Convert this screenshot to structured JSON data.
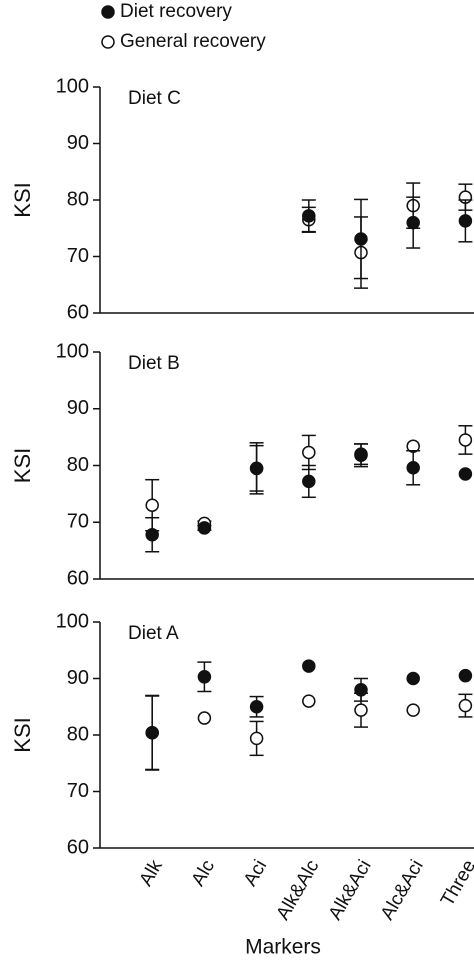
{
  "chart_data": [
    {
      "type": "scatter",
      "title": "Diet C",
      "ylabel": "KSI",
      "ylim": [
        60,
        100
      ],
      "yticks": [
        60,
        70,
        80,
        90,
        100
      ],
      "series": [
        {
          "name": "Diet recovery",
          "color": "#111111",
          "fill": "#111111",
          "values": [
            null,
            null,
            null,
            77.2,
            73.1,
            76,
            76.3
          ],
          "errors": [
            null,
            null,
            null,
            2.8,
            7,
            4.5,
            3.7
          ]
        },
        {
          "name": "General recovery",
          "color": "#111111",
          "fill": "#ffffff",
          "values": [
            null,
            null,
            null,
            76.5,
            70.7,
            79,
            80.5
          ],
          "errors": [
            null,
            null,
            null,
            2.2,
            6.3,
            4,
            2.3
          ]
        }
      ]
    },
    {
      "type": "scatter",
      "title": "Diet B",
      "ylabel": "KSI",
      "ylim": [
        60,
        100
      ],
      "yticks": [
        60,
        70,
        80,
        90,
        100
      ],
      "series": [
        {
          "color": "#111111",
          "fill": "#111111",
          "values": [
            67.8,
            69,
            79.5,
            77.2,
            81.8,
            79.6,
            78.5
          ],
          "errors": [
            3,
            0.4,
            4.5,
            2.8,
            2,
            3,
            null
          ]
        },
        {
          "color": "#111111",
          "fill": "#ffffff",
          "values": [
            73,
            69.8,
            79.5,
            82.3,
            82,
            83.4,
            84.5
          ],
          "errors": [
            4.5,
            0.4,
            4,
            3,
            1.8,
            null,
            2.5
          ]
        }
      ]
    },
    {
      "type": "scatter",
      "title": "Diet A",
      "ylabel": "KSI",
      "xlabel": "Markers",
      "ylim": [
        60,
        100
      ],
      "yticks": [
        60,
        70,
        80,
        90,
        100
      ],
      "categories": [
        "Alk",
        "Alc",
        "Aci",
        "Alk&Alc",
        "Alk&Aci",
        "Alc&Aci",
        "Three"
      ],
      "series": [
        {
          "color": "#111111",
          "fill": "#111111",
          "values": [
            80.4,
            90.3,
            85,
            92.2,
            88,
            90,
            90.5
          ],
          "errors": [
            6.6,
            2.6,
            1.8,
            null,
            2,
            null,
            null
          ]
        },
        {
          "color": "#111111",
          "fill": "#ffffff",
          "values": [
            80.4,
            83,
            79.4,
            86,
            84.4,
            84.4,
            85.2
          ],
          "errors": [
            6.5,
            null,
            3,
            null,
            3,
            null,
            2
          ]
        }
      ]
    }
  ]
}
